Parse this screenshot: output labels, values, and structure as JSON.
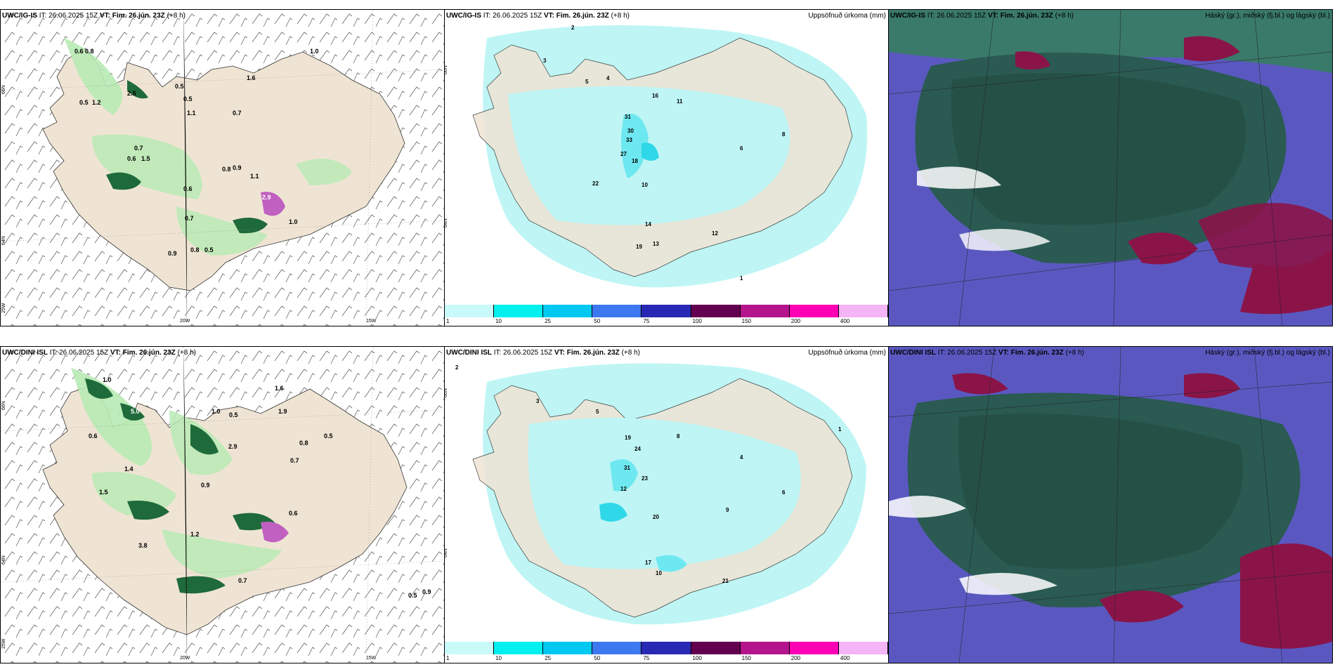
{
  "panels": {
    "top_left": {
      "model": "UWC/IG-IS",
      "it_label": "IT:",
      "it": "26.06.2025 15Z",
      "vt_label": "VT:",
      "vt": "Fim. 26.jún. 23Z",
      "lead": "(+8 h)"
    },
    "top_mid": {
      "model": "UWC/IG-IS",
      "it_label": "IT:",
      "it": "26.06.2025 15Z",
      "vt_label": "VT:",
      "vt": "Fim. 26.jún. 23Z",
      "lead": "(+8 h)",
      "right": "Uppsöfnuð úrkoma (mm)"
    },
    "top_right": {
      "model": "UWC/IG-IS",
      "it_label": "IT:",
      "it": "26.06.2025 15Z",
      "vt_label": "VT:",
      "vt": "Fim. 26.jún. 23Z",
      "lead": "(+8 h)",
      "right": "Háský (gr.), miðský (fj.bl.) og lágský (bl.)"
    },
    "bot_left": {
      "model": "UWC/DINI ISL",
      "it_label": "IT:",
      "it": "26.06.2025 15Z",
      "vt_label": "VT:",
      "vt": "Fim. 26.jún. 23Z",
      "lead": "(+8 h)"
    },
    "bot_mid": {
      "model": "UWC/DINI ISL",
      "it_label": "IT:",
      "it": "26.06.2025 15Z",
      "vt_label": "VT:",
      "vt": "Fim. 26.jún. 23Z",
      "lead": "(+8 h)",
      "right": "Uppsöfnuð úrkoma (mm)"
    },
    "bot_right": {
      "model": "UWC/DINI ISL",
      "it_label": "IT:",
      "it": "26.06.2025 15Z",
      "vt_label": "VT:",
      "vt": "Fim. 26.jún. 23Z",
      "lead": "(+8 h)",
      "right": "Háský (gr.), miðský (fj.bl.) og lágský (bl.)"
    }
  },
  "graticule": {
    "lat66": "66N",
    "lat64": "64N",
    "lon20": "20W",
    "lon15": "15W",
    "lon25": "25W"
  },
  "colorbar": {
    "labels": [
      "1",
      "10",
      "25",
      "50",
      "75",
      "100",
      "150",
      "200",
      "400"
    ],
    "colors": [
      "#c8fafa",
      "#00f0f0",
      "#00c8f0",
      "#3c78f0",
      "#2828b4",
      "#640050",
      "#b4148c",
      "#ff00b4",
      "#f5b4f5"
    ]
  },
  "colors": {
    "land": "#efe4d4",
    "precip_light": "#bff5f5",
    "precip_mid": "#6ee8f0",
    "green_light": "#b8eab4",
    "green_dark": "#1f6a3a",
    "purple": "#c060c0",
    "cloud_high": "#2a5a52",
    "cloud_mid": "#5a58c0",
    "cloud_low": "#8a1448"
  },
  "labels_tl": [
    "0.6",
    "0.8",
    "0.5",
    "1.2",
    "2.5",
    "0.5",
    "1.6",
    "0.7",
    "0.5",
    "1.1",
    "0.7",
    "0.6",
    "1.5",
    "0.9",
    "0.6",
    "0.8",
    "2.9",
    "1.0",
    "0.7",
    "0.8",
    "0.9",
    "0.5",
    "1.1",
    "1.0"
  ],
  "labels_tm": [
    "2",
    "3",
    "4",
    "5",
    "31",
    "30",
    "33",
    "27",
    "18",
    "22",
    "10",
    "16",
    "11",
    "19",
    "13",
    "14",
    "12",
    "6",
    "8",
    "1"
  ],
  "labels_bl": [
    "1.0",
    "5.0",
    "0.6",
    "1.0",
    "0.5",
    "1.4",
    "2.9",
    "1.6",
    "1.9",
    "0.8",
    "0.5",
    "0.7",
    "1.5",
    "0.9",
    "1.2",
    "3.8",
    "0.6",
    "0.7",
    "0.5",
    "0.9"
  ],
  "labels_bm": [
    "2",
    "3",
    "5",
    "19",
    "24",
    "31",
    "23",
    "12",
    "20",
    "17",
    "10",
    "21",
    "8",
    "4",
    "9",
    "6",
    "1"
  ]
}
